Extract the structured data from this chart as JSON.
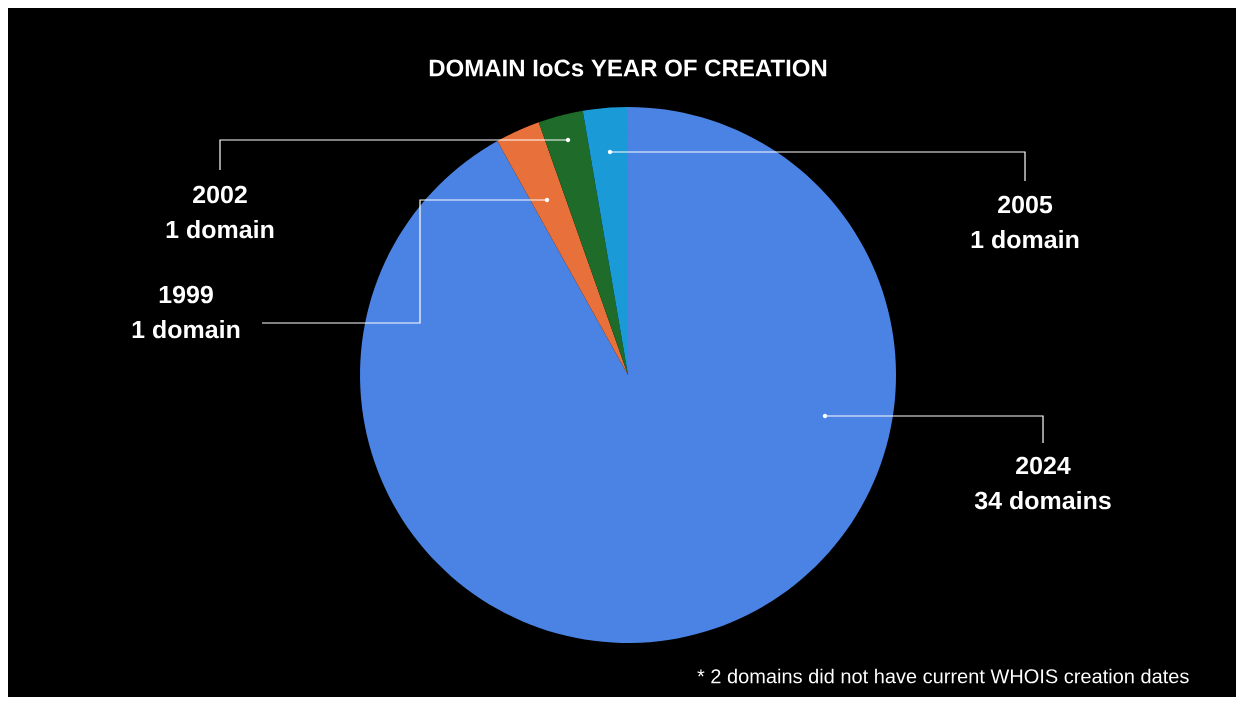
{
  "chart_data": {
    "type": "pie",
    "title": "DOMAIN IoCs YEAR OF CREATION",
    "categories": [
      "2024",
      "1999",
      "2002",
      "2005"
    ],
    "values": [
      34,
      1,
      1,
      1
    ],
    "colors": [
      "#4a83e4",
      "#e8703a",
      "#1e6b2a",
      "#1a9ad6"
    ],
    "value_labels": [
      "34 domains",
      "1 domain",
      "1 domain",
      "1 domain"
    ],
    "annotations": [
      "* 2 domains did not have current WHOIS creation dates"
    ]
  }
}
